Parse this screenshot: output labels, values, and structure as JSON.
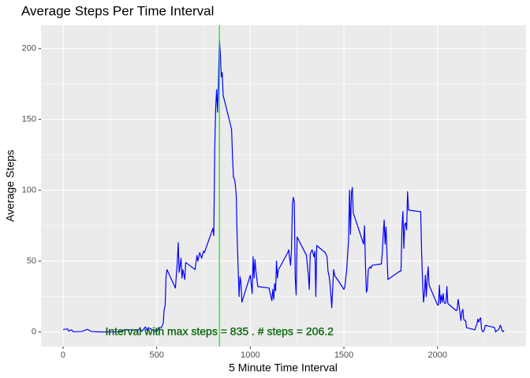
{
  "chart_data": {
    "type": "line",
    "title": "Average Steps Per Time Interval",
    "x_label": "5 Minute Time Interval",
    "y_label": "Average Steps",
    "annotation": {
      "text": "Interval with max steps =  835 . # steps =  206.2",
      "color": "#006400"
    },
    "vline": {
      "x": 835,
      "color": "#00ee00"
    },
    "x": [
      0,
      25,
      30,
      45,
      55,
      100,
      130,
      150,
      200,
      300,
      330,
      400,
      410,
      420,
      440,
      450,
      455,
      500,
      510,
      525,
      535,
      540,
      545,
      550,
      555,
      600,
      610,
      615,
      620,
      630,
      635,
      640,
      650,
      655,
      705,
      715,
      720,
      730,
      740,
      750,
      755,
      800,
      805,
      810,
      815,
      820,
      825,
      830,
      835,
      840,
      845,
      850,
      855,
      900,
      905,
      910,
      915,
      920,
      925,
      930,
      935,
      940,
      945,
      950,
      955,
      1000,
      1010,
      1015,
      1020,
      1025,
      1030,
      1040,
      1100,
      1115,
      1120,
      1125,
      1130,
      1135,
      1140,
      1145,
      1150,
      1155,
      1200,
      1205,
      1210,
      1215,
      1220,
      1225,
      1230,
      1235,
      1240,
      1245,
      1250,
      1300,
      1305,
      1310,
      1315,
      1320,
      1330,
      1340,
      1345,
      1350,
      1355,
      1400,
      1410,
      1415,
      1420,
      1425,
      1430,
      1435,
      1440,
      1445,
      1450,
      1500,
      1505,
      1510,
      1515,
      1520,
      1525,
      1530,
      1535,
      1540,
      1545,
      1550,
      1600,
      1605,
      1610,
      1615,
      1620,
      1625,
      1630,
      1640,
      1645,
      1650,
      1700,
      1705,
      1710,
      1715,
      1720,
      1725,
      1730,
      1735,
      1800,
      1805,
      1810,
      1815,
      1820,
      1825,
      1830,
      1835,
      1840,
      1845,
      1900,
      1905,
      1910,
      1915,
      1920,
      1925,
      1930,
      1935,
      1940,
      1945,
      1950,
      1955,
      2000,
      2005,
      2010,
      2015,
      2020,
      2025,
      2030,
      2035,
      2040,
      2045,
      2050,
      2055,
      2100,
      2105,
      2110,
      2115,
      2120,
      2125,
      2130,
      2135,
      2140,
      2145,
      2150,
      2155,
      2200,
      2205,
      2210,
      2215,
      2220,
      2225,
      2230,
      2235,
      2240,
      2245,
      2250,
      2255,
      2300,
      2305,
      2310,
      2315,
      2320,
      2325,
      2330,
      2335,
      2340,
      2345,
      2350,
      2355
    ],
    "series": [
      {
        "color": "#0000ff",
        "values": [
          1.7,
          2.1,
          0.5,
          1.5,
          0.1,
          0.3,
          1.8,
          0.3,
          0,
          0.1,
          1.6,
          1.2,
          2.6,
          0.3,
          3.5,
          1,
          3,
          0,
          3,
          3,
          6,
          16,
          18,
          39,
          44,
          31,
          49,
          63,
          42,
          52,
          38,
          44,
          37,
          49,
          44,
          54,
          50,
          56,
          52,
          57,
          56,
          73,
          68,
          129,
          158,
          171,
          155,
          177,
          206.2,
          196,
          180,
          183,
          167,
          143,
          124,
          109,
          108,
          104,
          96,
          66,
          45,
          25,
          39,
          35,
          21,
          40,
          27,
          53,
          38,
          51,
          43,
          32,
          31,
          22,
          30,
          23,
          34,
          29,
          50,
          38,
          44,
          45,
          56,
          58,
          52,
          47,
          58,
          90,
          95,
          92,
          38,
          26,
          67,
          54,
          47,
          40,
          30,
          55,
          58,
          53,
          57,
          25,
          61,
          56,
          53,
          43,
          40,
          35,
          27,
          17,
          30,
          44,
          40,
          30,
          32,
          38,
          44,
          55,
          65,
          100,
          69,
          98,
          102,
          84,
          64,
          62,
          75,
          47,
          28,
          30,
          44,
          46,
          45,
          47,
          48,
          56,
          69,
          79,
          62,
          74,
          55,
          37,
          43,
          43,
          74,
          85,
          59,
          76,
          77,
          72,
          99,
          86,
          85,
          85,
          85,
          56,
          36,
          21,
          27,
          40,
          25,
          38,
          46,
          33,
          19,
          19,
          33,
          20,
          26,
          21,
          27,
          21,
          20,
          21,
          32,
          20,
          15,
          16,
          23,
          19,
          13,
          8,
          14,
          16,
          9,
          8,
          8,
          3,
          1.5,
          4,
          5,
          9,
          7,
          9,
          10,
          2,
          0.3,
          0.1,
          1.6,
          4.6,
          3.3,
          2.8,
          0,
          0.8,
          1,
          1.6,
          2.6,
          4.7,
          3.3,
          0.6,
          0.2,
          1.1
        ]
      }
    ],
    "xlim": [
      -117.75,
      2472.75
    ],
    "ylim": [
      -10.3,
      216.5
    ],
    "xticks": [
      0,
      500,
      1000,
      1500,
      2000
    ],
    "yticks": [
      0,
      50,
      100,
      150,
      200
    ],
    "xminor": [
      250,
      750,
      1250,
      1750,
      2250
    ],
    "yminor": [
      25,
      75,
      125,
      175
    ],
    "grid": true
  }
}
